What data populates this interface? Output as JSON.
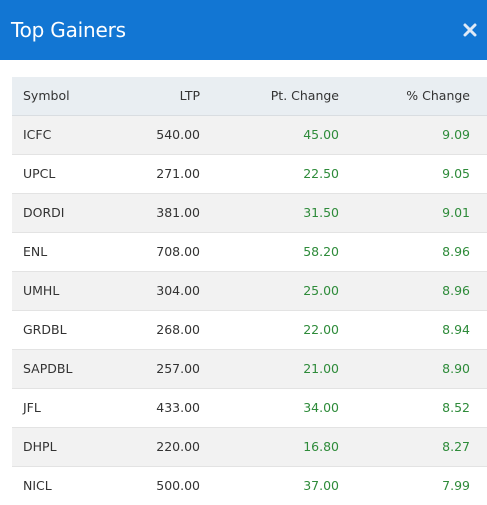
{
  "header": {
    "title": "Top Gainers",
    "close_symbol": "✕",
    "background_color": "#1276d3"
  },
  "table": {
    "columns": [
      "Symbol",
      "LTP",
      "Pt. Change",
      "% Change"
    ],
    "rows": [
      {
        "symbol": "ICFC",
        "ltp": "540.00",
        "pt_change": "45.00",
        "pct_change": "9.09"
      },
      {
        "symbol": "UPCL",
        "ltp": "271.00",
        "pt_change": "22.50",
        "pct_change": "9.05"
      },
      {
        "symbol": "DORDI",
        "ltp": "381.00",
        "pt_change": "31.50",
        "pct_change": "9.01"
      },
      {
        "symbol": "ENL",
        "ltp": "708.00",
        "pt_change": "58.20",
        "pct_change": "8.96"
      },
      {
        "symbol": "UMHL",
        "ltp": "304.00",
        "pt_change": "25.00",
        "pct_change": "8.96"
      },
      {
        "symbol": "GRDBL",
        "ltp": "268.00",
        "pt_change": "22.00",
        "pct_change": "8.94"
      },
      {
        "symbol": "SAPDBL",
        "ltp": "257.00",
        "pt_change": "21.00",
        "pct_change": "8.90"
      },
      {
        "symbol": "JFL",
        "ltp": "433.00",
        "pt_change": "34.00",
        "pct_change": "8.52"
      },
      {
        "symbol": "DHPL",
        "ltp": "220.00",
        "pt_change": "16.80",
        "pct_change": "8.27"
      },
      {
        "symbol": "NICL",
        "ltp": "500.00",
        "pt_change": "37.00",
        "pct_change": "7.99"
      }
    ],
    "gain_color": "#2e8b3a"
  }
}
